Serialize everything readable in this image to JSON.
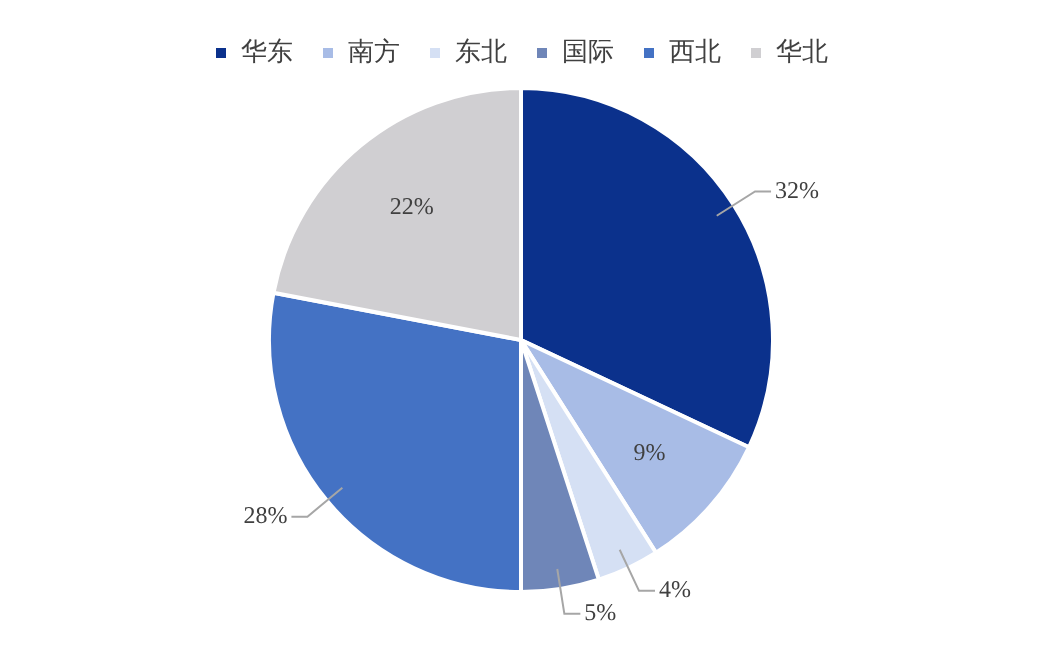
{
  "chart_data": {
    "type": "pie",
    "categories": [
      "华东",
      "南方",
      "东北",
      "国际",
      "西北",
      "华北"
    ],
    "values": [
      32,
      9,
      4,
      5,
      28,
      22
    ],
    "colors": [
      "#0b318c",
      "#a8bce6",
      "#d5e0f4",
      "#6f86b8",
      "#4472c4",
      "#d0cfd2"
    ],
    "value_labels": [
      "32%",
      "9%",
      "4%",
      "5%",
      "28%",
      "22%"
    ],
    "legend": "top"
  }
}
